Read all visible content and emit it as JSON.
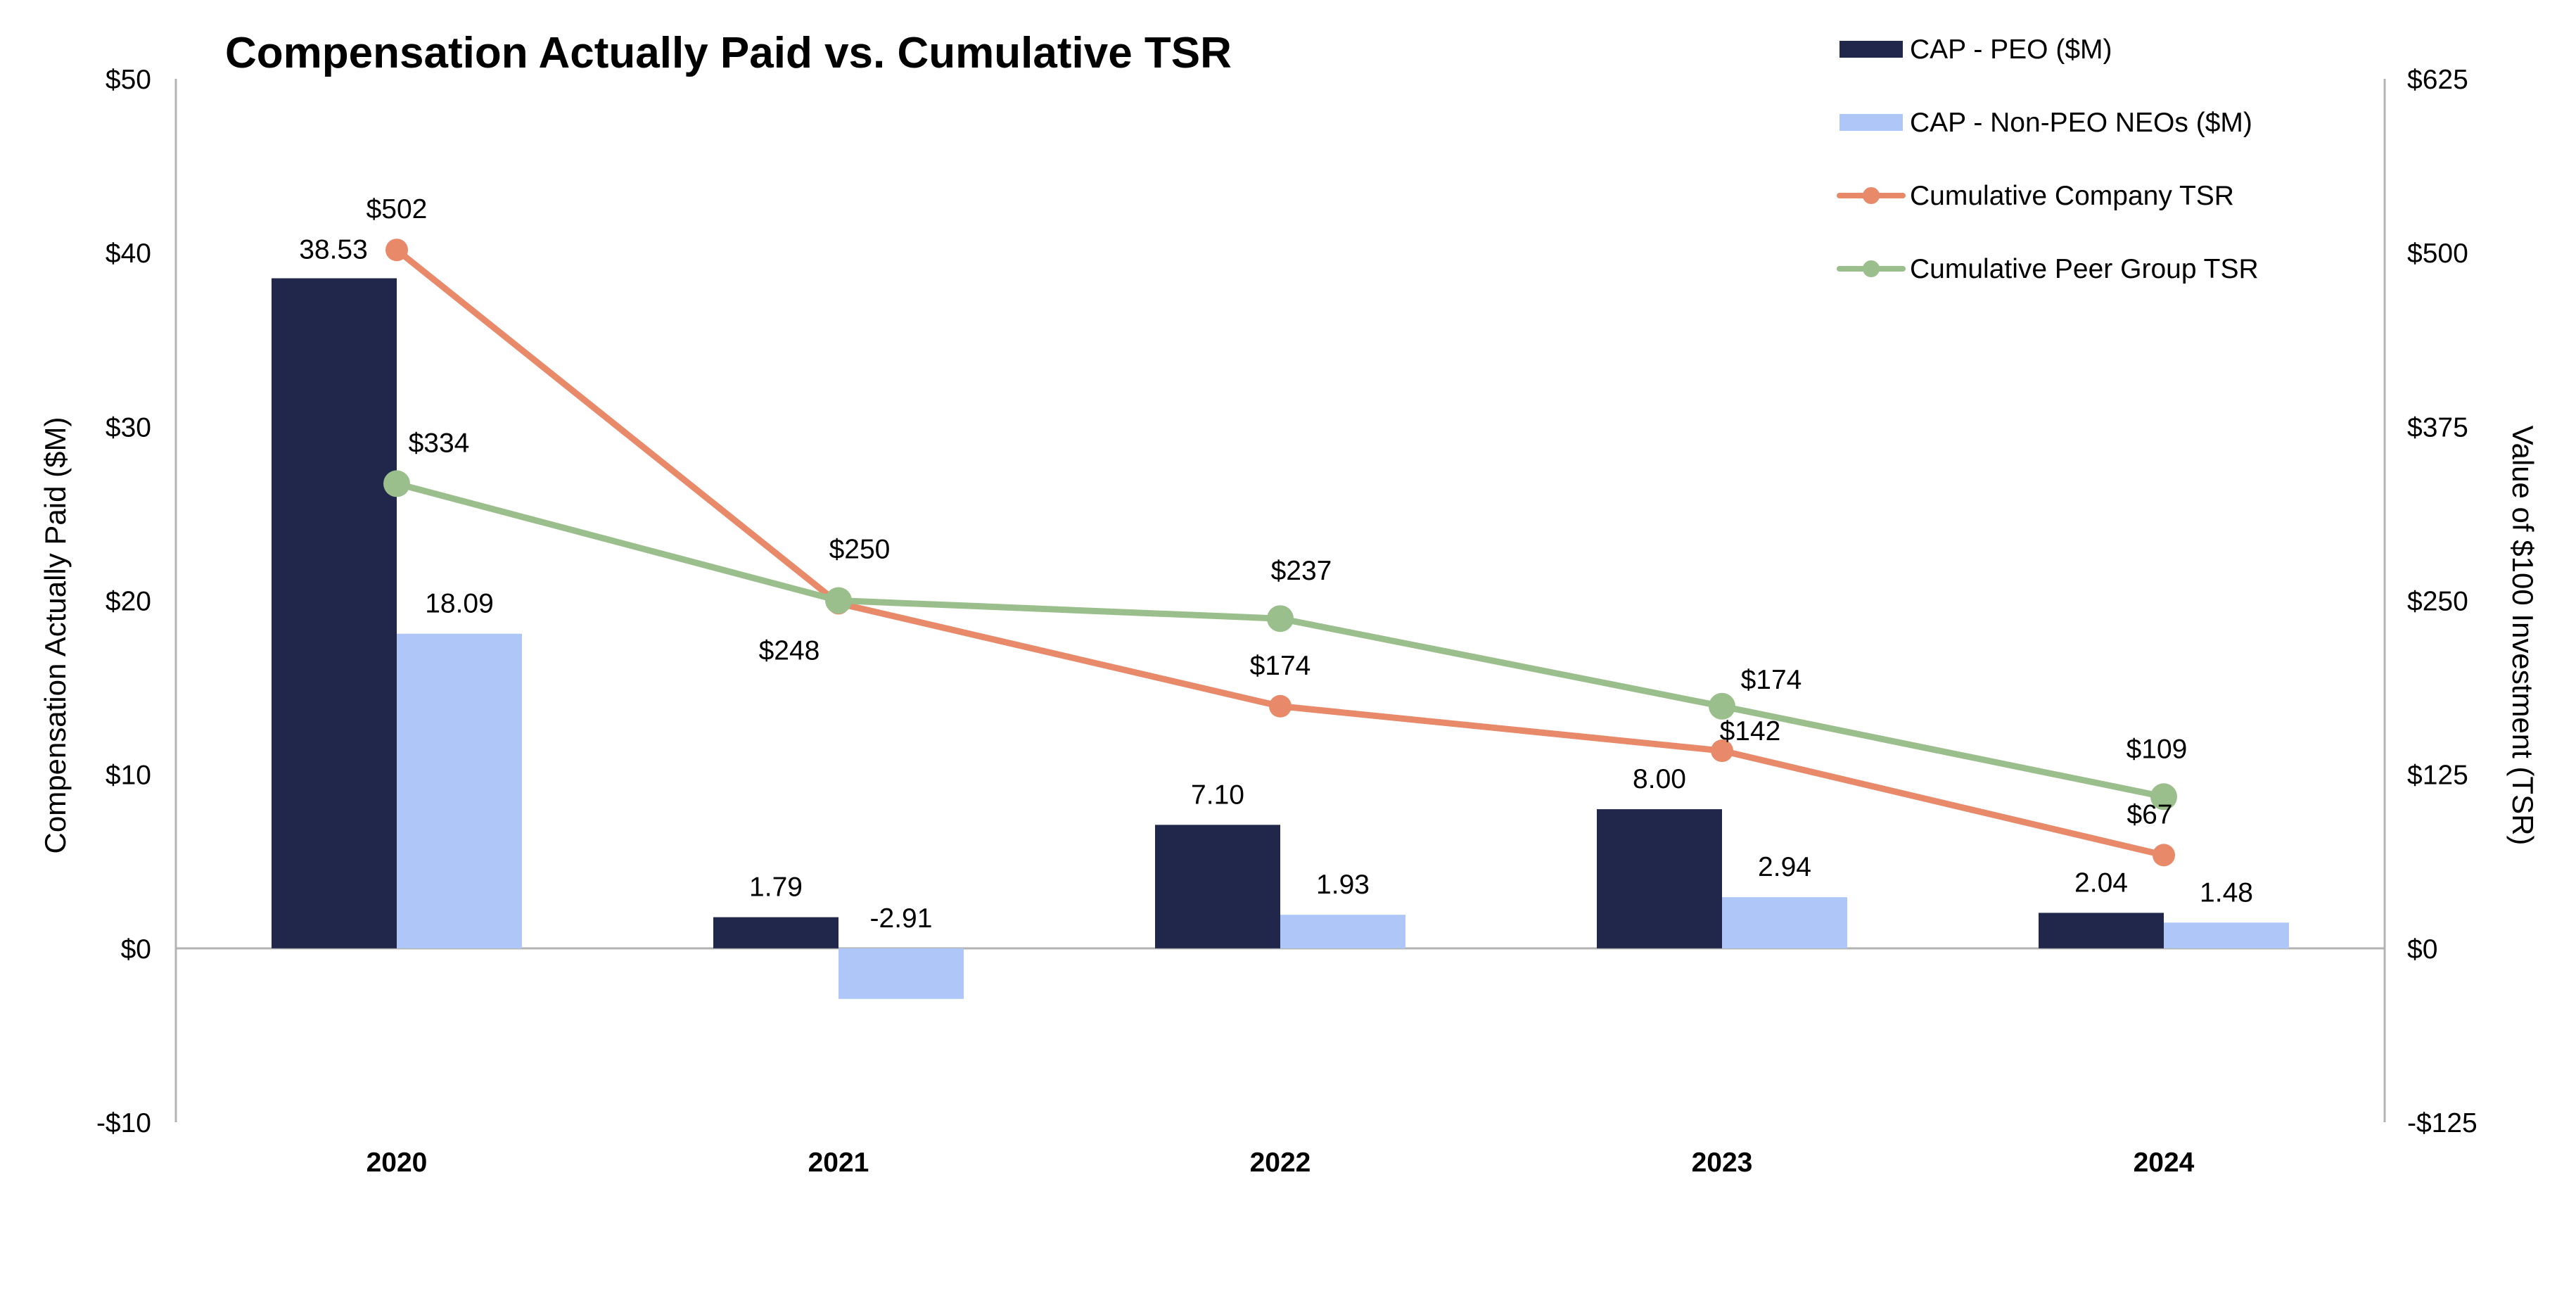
{
  "chart_data": {
    "type": "bar",
    "title": "Compensation Actually Paid vs. Cumulative TSR",
    "categories": [
      "2020",
      "2021",
      "2022",
      "2023",
      "2024"
    ],
    "ylabel": "Compensation Actually Paid ($M)",
    "y2label": "Value of $100 Investment (TSR)",
    "ylim": [
      -10,
      50
    ],
    "y2lim": [
      -125,
      625
    ],
    "y_ticks": [
      -10,
      0,
      10,
      20,
      30,
      40,
      50
    ],
    "y_tick_labels": [
      "-$10",
      "$0",
      "$10",
      "$20",
      "$30",
      "$40",
      "$50"
    ],
    "y2_ticks": [
      -125,
      0,
      125,
      250,
      375,
      500,
      625
    ],
    "y2_tick_labels": [
      "-$125",
      "$0",
      "$125",
      "$250",
      "$375",
      "$500",
      "$625"
    ],
    "legend_position": "top-right",
    "grid": false,
    "bar_series": [
      {
        "name": "CAP - PEO ($M)",
        "values": [
          38.53,
          1.79,
          7.1,
          8.0,
          2.04
        ],
        "labels": [
          "38.53",
          "1.79",
          "7.10",
          "8.00",
          "2.04"
        ],
        "color": "#20274a"
      },
      {
        "name": "CAP - Non-PEO NEOs ($M)",
        "values": [
          18.09,
          -2.91,
          1.93,
          2.94,
          1.48
        ],
        "labels": [
          "18.09",
          "-2.91",
          "1.93",
          "2.94",
          "1.48"
        ],
        "color": "#afc7f8"
      }
    ],
    "line_series": [
      {
        "name": "Cumulative Company TSR",
        "values": [
          502,
          248,
          174,
          142,
          67
        ],
        "labels": [
          "$502",
          "$248",
          "$174",
          "$142",
          "$67"
        ],
        "color": "#e8896a",
        "axis": "right"
      },
      {
        "name": "Cumulative Peer Group TSR",
        "values": [
          334,
          250,
          237,
          174,
          109
        ],
        "labels": [
          "$334",
          "$250",
          "$237",
          "$174",
          "$109"
        ],
        "color": "#9bbf8c",
        "axis": "right"
      }
    ]
  }
}
